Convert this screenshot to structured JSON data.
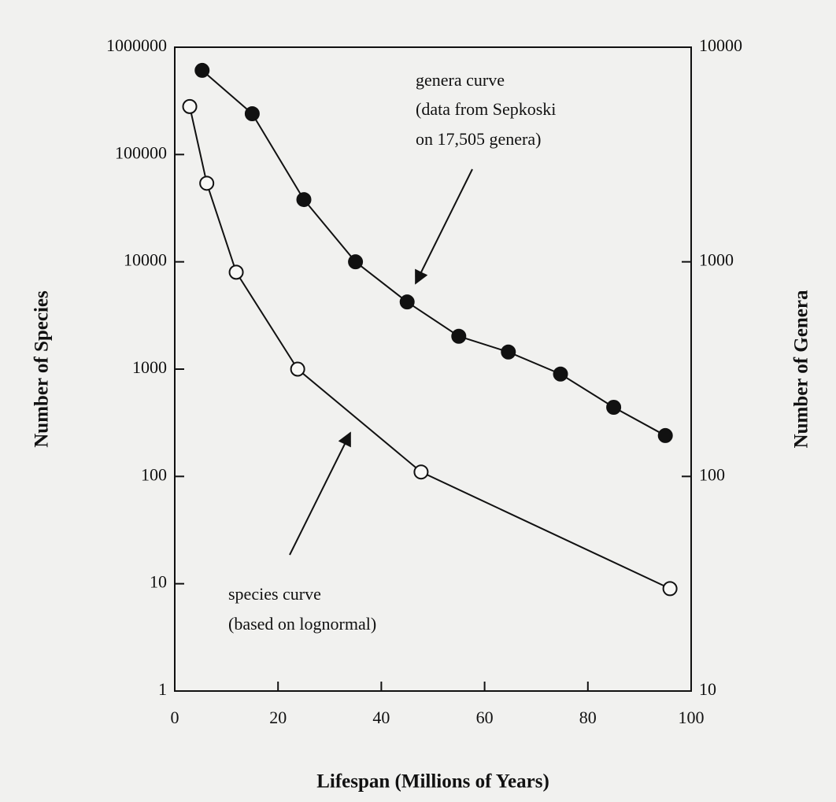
{
  "chart_data": {
    "type": "line",
    "x_label": "Lifespan (Millions of Years)",
    "y_label": "Number of Species",
    "y2_label": "Number of Genera",
    "xlim": [
      0,
      100
    ],
    "xticks": [
      0,
      20,
      40,
      60,
      80,
      100
    ],
    "ylim": [
      1,
      1000000
    ],
    "yticks": [
      1,
      10,
      100,
      1000,
      10000,
      100000,
      1000000
    ],
    "y2lim": [
      10,
      10000
    ],
    "y2ticks": [
      10,
      100,
      1000,
      10000
    ],
    "log_y": true,
    "series": [
      {
        "name": "species curve",
        "color": "#111111",
        "marker": "open",
        "axis": "y",
        "x": [
          2.9,
          6.2,
          11.9,
          23.8,
          47.7,
          95.9
        ],
        "values": [
          280000,
          54000,
          8000,
          1000,
          110,
          9
        ]
      },
      {
        "name": "genera curve",
        "color": "#111111",
        "marker": "filled",
        "axis": "y2",
        "x": [
          5.3,
          15,
          25,
          35,
          45,
          55,
          64.6,
          74.7,
          85,
          95
        ],
        "values": [
          7800,
          4900,
          1950,
          1000,
          650,
          450,
          380,
          300,
          210,
          155
        ]
      }
    ],
    "annotations": [
      "(data from Sepkoski",
      "on 17,505 genera)",
      "(based on lognormal)"
    ]
  }
}
